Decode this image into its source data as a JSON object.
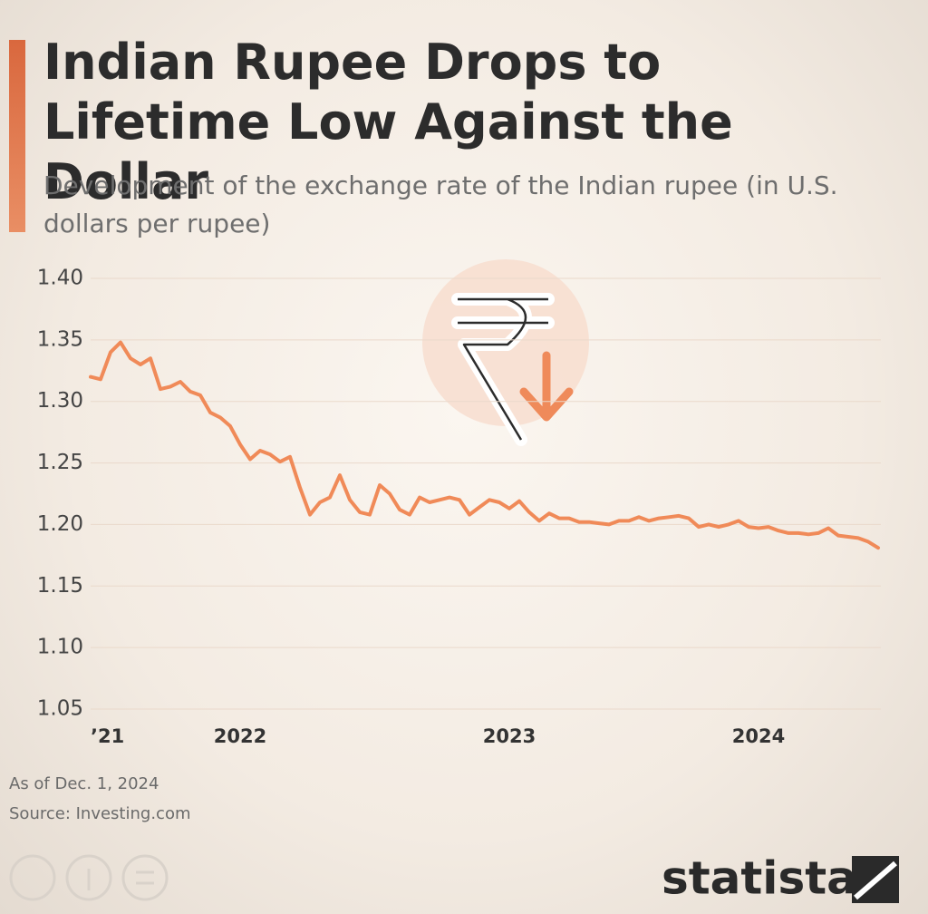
{
  "chart_data": {
    "type": "line",
    "title": "Indian Rupee Drops to Lifetime Low Against the Dollar",
    "subtitle": "Development of the exchange rate of the Indian rupee (in U.S. dollars per rupee)",
    "categories": [
      "’21",
      null,
      null,
      null,
      null,
      null,
      null,
      null,
      null,
      null,
      null,
      null,
      null,
      null,
      null,
      "2022",
      null,
      null,
      null,
      null,
      null,
      null,
      null,
      null,
      null,
      null,
      null,
      null,
      null,
      null,
      null,
      null,
      null,
      null,
      null,
      null,
      null,
      null,
      null,
      null,
      null,
      null,
      "2023",
      null,
      null,
      null,
      null,
      null,
      null,
      null,
      null,
      null,
      null,
      null,
      null,
      null,
      null,
      null,
      null,
      null,
      null,
      null,
      null,
      null,
      null,
      null,
      null,
      "2024",
      null,
      null,
      null,
      null,
      null,
      null,
      null,
      null,
      null,
      null,
      null,
      null
    ],
    "values": [
      1.32,
      1.318,
      1.34,
      1.348,
      1.335,
      1.33,
      1.335,
      1.31,
      1.312,
      1.316,
      1.308,
      1.305,
      1.291,
      1.287,
      1.28,
      1.265,
      1.253,
      1.26,
      1.257,
      1.251,
      1.255,
      1.23,
      1.208,
      1.218,
      1.222,
      1.24,
      1.22,
      1.21,
      1.208,
      1.232,
      1.225,
      1.212,
      1.208,
      1.222,
      1.218,
      1.22,
      1.222,
      1.22,
      1.208,
      1.214,
      1.22,
      1.218,
      1.213,
      1.219,
      1.21,
      1.203,
      1.209,
      1.205,
      1.205,
      1.202,
      1.202,
      1.201,
      1.2,
      1.203,
      1.203,
      1.206,
      1.203,
      1.205,
      1.206,
      1.207,
      1.205,
      1.198,
      1.2,
      1.198,
      1.2,
      1.203,
      1.198,
      1.197,
      1.198,
      1.195,
      1.193,
      1.193,
      1.192,
      1.193,
      1.197,
      1.191,
      1.19,
      1.189,
      1.186,
      1.181
    ],
    "color": "#f08a58",
    "ylim": [
      1.05,
      1.4
    ],
    "yticks": [
      {
        "value": 1.4,
        "label": "1.40"
      },
      1.35,
      {
        "value": 1.3,
        "label": "1.30"
      },
      1.25,
      {
        "value": 1.2,
        "label": "1.20"
      },
      1.15,
      {
        "value": 1.1,
        "label": "1.10"
      },
      1.05
    ],
    "grid": true,
    "note": "As of Dec. 1, 2024",
    "source": "Source: Investing.com",
    "brand": "statista"
  }
}
